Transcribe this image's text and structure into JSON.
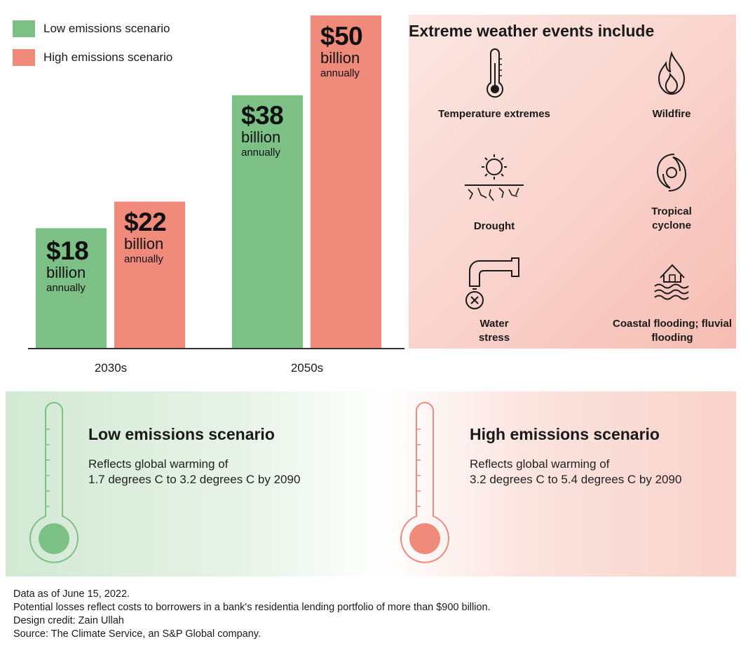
{
  "legend": [
    {
      "label": "Low emissions scenario",
      "color": "#7cc086"
    },
    {
      "label": "High emissions scenario",
      "color": "#f08a7a"
    }
  ],
  "chart_data": {
    "type": "bar",
    "categories": [
      "2030s",
      "2050s"
    ],
    "series": [
      {
        "name": "Low emissions scenario",
        "values": [
          18,
          38
        ],
        "color": "#7cc086"
      },
      {
        "name": "High emissions scenario",
        "values": [
          22,
          50
        ],
        "color": "#f08a7a"
      }
    ],
    "ylim": [
      0,
      50
    ],
    "value_labels": {
      "low": [
        {
          "amount": "$18",
          "unit": "billion",
          "freq": "annually"
        },
        {
          "amount": "$38",
          "unit": "billion",
          "freq": "annually"
        }
      ],
      "high": [
        {
          "amount": "$22",
          "unit": "billion",
          "freq": "annually"
        },
        {
          "amount": "$50",
          "unit": "billion",
          "freq": "annually"
        }
      ]
    }
  },
  "weather": {
    "title": "Extreme weather events include",
    "events": [
      {
        "label": "Temperature extremes",
        "icon": "thermometer-icon"
      },
      {
        "label": "Wildfire",
        "icon": "fire-icon"
      },
      {
        "label": "Drought",
        "icon": "drought-icon"
      },
      {
        "label": "Tropical cyclone",
        "icon": "cyclone-icon"
      },
      {
        "label": "Water stress",
        "icon": "faucet-icon"
      },
      {
        "label": "Coastal flooding; fluvial flooding",
        "icon": "flood-house-icon"
      }
    ]
  },
  "scenarios": {
    "low": {
      "title": "Low emissions scenario",
      "line1": "Reflects global warming of",
      "line2": "1.7 degrees C to 3.2 degrees C by 2090",
      "color": "#7cc086"
    },
    "high": {
      "title": "High emissions scenario",
      "line1": "Reflects global warming of",
      "line2": "3.2 degrees C to 5.4 degrees C by 2090",
      "color": "#f08a7a"
    }
  },
  "footnotes": [
    "Data as of June 15, 2022.",
    "Potential losses reflect costs to borrowers in a bank's residentia lending portfolio of more than $900 billion.",
    "Design credit: Zain Ullah",
    "Source: The Climate Service, an S&P Global company."
  ]
}
